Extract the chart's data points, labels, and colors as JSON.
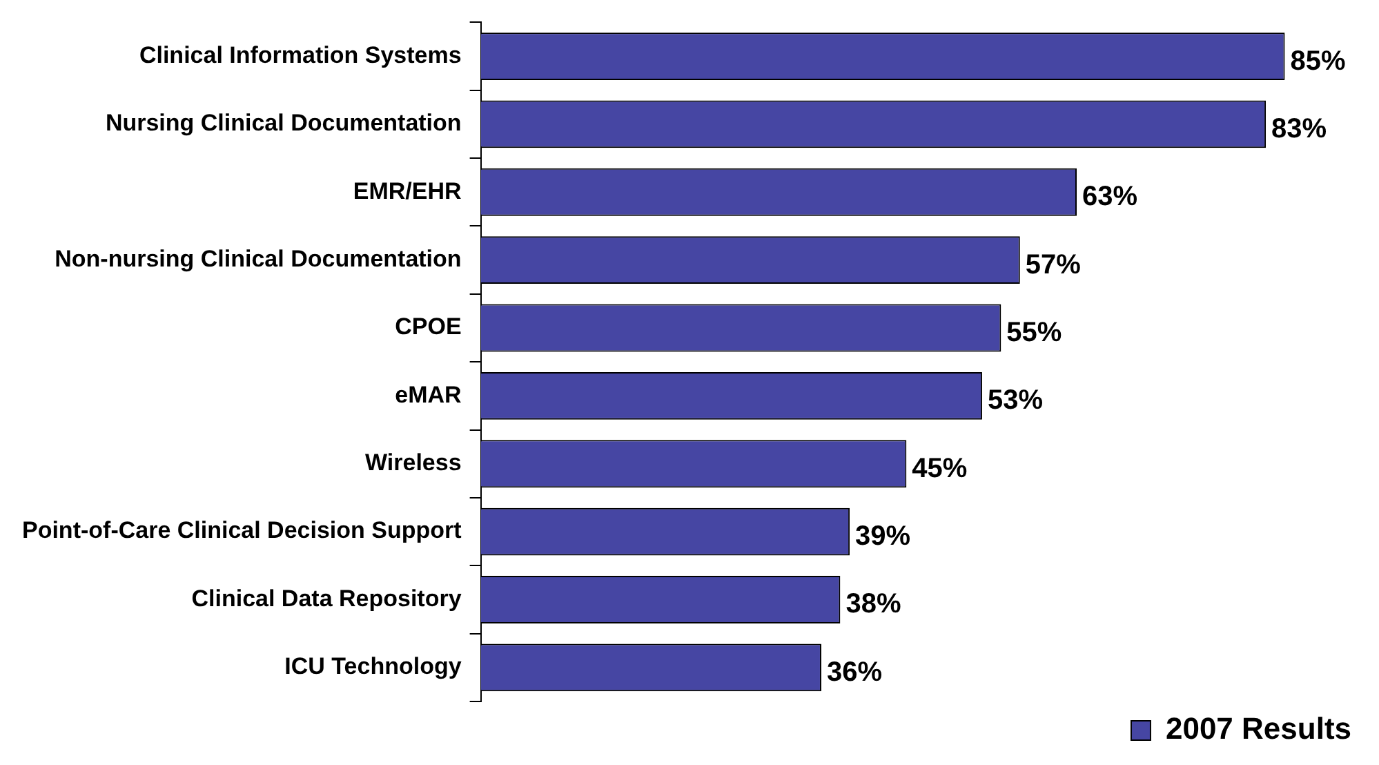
{
  "chart_data": {
    "type": "bar",
    "orientation": "horizontal",
    "categories": [
      "Clinical Information Systems",
      "Nursing Clinical Documentation",
      "EMR/EHR",
      "Non-nursing Clinical Documentation",
      "CPOE",
      "eMAR",
      "Wireless",
      "Point-of-Care Clinical Decision Support",
      "Clinical Data Repository",
      "ICU Technology"
    ],
    "series": [
      {
        "name": "2007 Results",
        "color": "#4646a3",
        "values": [
          85,
          83,
          63,
          57,
          55,
          53,
          45,
          39,
          38,
          36
        ],
        "value_labels": [
          "85%",
          "83%",
          "63%",
          "57%",
          "55%",
          "53%",
          "45%",
          "39%",
          "38%",
          "36%"
        ]
      }
    ],
    "legend": "bottom right",
    "grid": false
  }
}
